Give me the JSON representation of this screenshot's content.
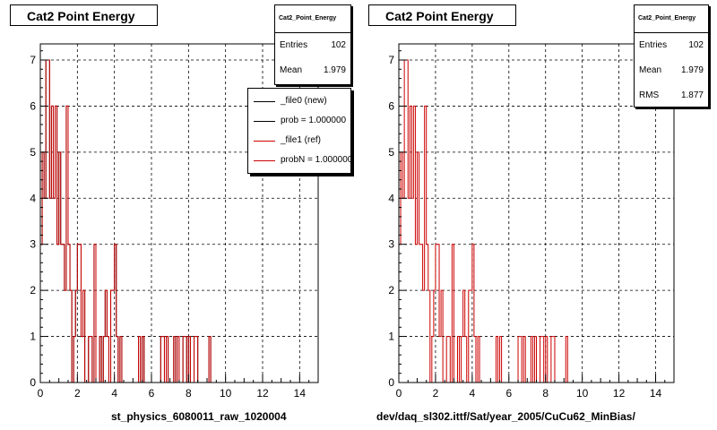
{
  "colors": {
    "hist0": "#000000",
    "hist1": "#cc0000",
    "frame": "#000000",
    "grid": "#000000"
  },
  "left_panel": {
    "title": "Cat2 Point Energy",
    "stats": {
      "name": "Cat2_Point_Energy",
      "rows": [
        {
          "label": "Entries",
          "value": "102"
        },
        {
          "label": "Mean",
          "value": "1.979"
        }
      ]
    },
    "legend": [
      {
        "text": "_file0 (new)",
        "color": "#000000"
      },
      {
        "text": "prob = 1.000000",
        "color": "#000000"
      },
      {
        "text": "_file1 (ref)",
        "color": "#cc0000"
      },
      {
        "text": "probN = 1.000000",
        "color": "#cc0000"
      }
    ],
    "run_label": "st_physics_6080011_raw_1020004"
  },
  "right_panel": {
    "title": "Cat2 Point Energy",
    "stats": {
      "name": "Cat2_Point_Energy",
      "rows": [
        {
          "label": "Entries",
          "value": "102"
        },
        {
          "label": "Mean",
          "value": "1.979"
        },
        {
          "label": "RMS",
          "value": "1.877"
        }
      ]
    },
    "run_label": "dev/daq_sl302.ittf/Sat/year_2005/CuCu62_MinBias/"
  },
  "footer": "",
  "chart_data": [
    {
      "type": "histogram",
      "title": "Cat2 Point Energy",
      "xlim": [
        0,
        15
      ],
      "ylim": [
        0,
        7.35
      ],
      "xticks": [
        0,
        2,
        4,
        6,
        8,
        10,
        12,
        14
      ],
      "yticks": [
        0,
        1,
        2,
        3,
        4,
        5,
        6,
        7
      ],
      "grid": true,
      "bin_width": 0.1,
      "series": [
        {
          "name": "_file0 (new)",
          "values": [
            3,
            5,
            4,
            7,
            7,
            4,
            6,
            4,
            6,
            3,
            5,
            3,
            3,
            2,
            6,
            3,
            2,
            0,
            1,
            2,
            3,
            3,
            1,
            2,
            0,
            0,
            1,
            1,
            0,
            3,
            0,
            0,
            1,
            0,
            1,
            2,
            1,
            0,
            2,
            2,
            3,
            1,
            0,
            1,
            0,
            0,
            0,
            0,
            0,
            0,
            0,
            0,
            0,
            1,
            0,
            1,
            0,
            0,
            0,
            0,
            0,
            0,
            0,
            0,
            0,
            1,
            1,
            0,
            1,
            0,
            0,
            0,
            1,
            0,
            1,
            0,
            0,
            1,
            1,
            0,
            1,
            0,
            0,
            1,
            1,
            0,
            0,
            0,
            0,
            0,
            0,
            1,
            0,
            0,
            0,
            0,
            0,
            0,
            0,
            0,
            0,
            0,
            0,
            0,
            0,
            0,
            0,
            0,
            0,
            0,
            0,
            0,
            0,
            0,
            0,
            0,
            0,
            0,
            0,
            0,
            0,
            0,
            0,
            0,
            0,
            0,
            0,
            0,
            0,
            0,
            0,
            0,
            0,
            0,
            0,
            0,
            0,
            0,
            0,
            0,
            0,
            0,
            0,
            0,
            0,
            0,
            0,
            0,
            0,
            0
          ]
        },
        {
          "name": "_file1 (ref)",
          "values": [
            3,
            5,
            4,
            7,
            7,
            4,
            6,
            4,
            6,
            3,
            5,
            3,
            3,
            2,
            6,
            3,
            2,
            0,
            1,
            2,
            3,
            3,
            1,
            2,
            0,
            0,
            1,
            1,
            0,
            3,
            0,
            0,
            1,
            0,
            1,
            2,
            1,
            0,
            2,
            2,
            3,
            1,
            0,
            1,
            0,
            0,
            0,
            0,
            0,
            0,
            0,
            0,
            0,
            1,
            0,
            1,
            0,
            0,
            0,
            0,
            0,
            0,
            0,
            0,
            0,
            1,
            1,
            0,
            1,
            0,
            0,
            0,
            1,
            0,
            1,
            0,
            0,
            1,
            1,
            0,
            1,
            0,
            0,
            1,
            1,
            0,
            0,
            0,
            0,
            0,
            0,
            1,
            0,
            0,
            0,
            0,
            0,
            0,
            0,
            0,
            0,
            0,
            0,
            0,
            0,
            0,
            0,
            0,
            0,
            0,
            0,
            0,
            0,
            0,
            0,
            0,
            0,
            0,
            0,
            0,
            0,
            0,
            0,
            0,
            0,
            0,
            0,
            0,
            0,
            0,
            0,
            0,
            0,
            0,
            0,
            0,
            0,
            0,
            0,
            0,
            0,
            0,
            0,
            0,
            0,
            0,
            0,
            0,
            0,
            0
          ]
        }
      ]
    },
    {
      "type": "histogram",
      "title": "Cat2 Point Energy",
      "xlim": [
        0,
        15
      ],
      "ylim": [
        0,
        7.35
      ],
      "xticks": [
        0,
        2,
        4,
        6,
        8,
        10,
        12,
        14
      ],
      "yticks": [
        0,
        1,
        2,
        3,
        4,
        5,
        6,
        7
      ],
      "grid": true,
      "bin_width": 0.1,
      "series": [
        {
          "name": "_file1 (ref)",
          "values": [
            3,
            5,
            4,
            7,
            7,
            4,
            6,
            4,
            6,
            3,
            5,
            3,
            3,
            2,
            6,
            3,
            2,
            0,
            1,
            2,
            3,
            3,
            1,
            2,
            0,
            0,
            1,
            1,
            0,
            3,
            0,
            0,
            1,
            0,
            1,
            2,
            1,
            0,
            2,
            2,
            3,
            1,
            0,
            1,
            0,
            0,
            0,
            0,
            0,
            0,
            0,
            0,
            0,
            1,
            0,
            1,
            0,
            0,
            0,
            0,
            0,
            0,
            0,
            0,
            0,
            1,
            1,
            0,
            1,
            0,
            0,
            0,
            1,
            0,
            1,
            0,
            0,
            1,
            1,
            0,
            1,
            0,
            0,
            1,
            1,
            0,
            0,
            0,
            0,
            0,
            0,
            1,
            0,
            0,
            0,
            0,
            0,
            0,
            0,
            0,
            0,
            0,
            0,
            0,
            0,
            0,
            0,
            0,
            0,
            0,
            0,
            0,
            0,
            0,
            0,
            0,
            0,
            0,
            0,
            0,
            0,
            0,
            0,
            0,
            0,
            0,
            0,
            0,
            0,
            0,
            0,
            0,
            0,
            0,
            0,
            0,
            0,
            0,
            0,
            0,
            0,
            0,
            0,
            0,
            0,
            0,
            0,
            0,
            0,
            0
          ]
        }
      ]
    }
  ]
}
